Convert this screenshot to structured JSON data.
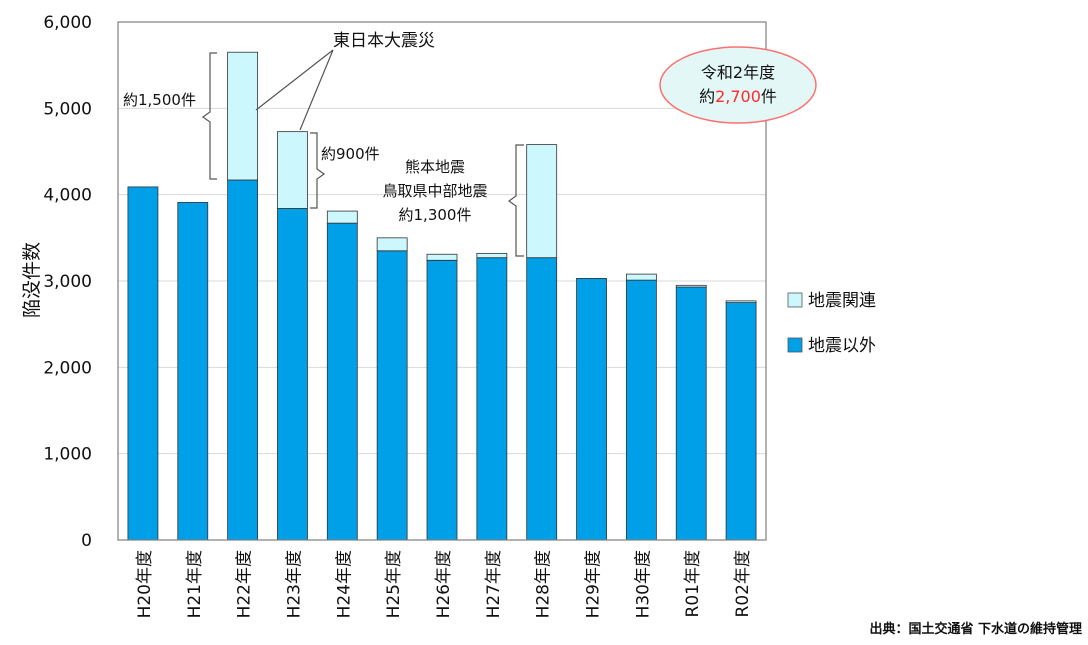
{
  "chart_data": {
    "type": "bar",
    "stacked": true,
    "categories": [
      "H20年度",
      "H21年度",
      "H22年度",
      "H23年度",
      "H24年度",
      "H25年度",
      "H26年度",
      "H27年度",
      "H28年度",
      "H29年度",
      "H30年度",
      "R01年度",
      "R02年度"
    ],
    "series": [
      {
        "name": "地震以外",
        "color": "#00a0e9",
        "values": [
          4090,
          3910,
          4170,
          3840,
          3670,
          3350,
          3240,
          3270,
          3270,
          3030,
          3010,
          2930,
          2750
        ]
      },
      {
        "name": "地震関連",
        "color": "#ccf7fc",
        "values": [
          0,
          0,
          1480,
          890,
          140,
          150,
          70,
          50,
          1310,
          0,
          70,
          20,
          20
        ]
      }
    ],
    "ylabel": "陥没件数",
    "ylim": [
      0,
      6000
    ],
    "yticks": [
      0,
      1000,
      2000,
      3000,
      4000,
      5000,
      6000
    ],
    "ytick_labels": [
      "0",
      "1,000",
      "2,000",
      "3,000",
      "4,000",
      "5,000",
      "6,000"
    ],
    "grid": true,
    "legend_position": "right",
    "annotations": {
      "quake_label": "東日本大震災",
      "h22_amount": "約1,500件",
      "h23_amount": "約900件",
      "h28_line1": "熊本地震",
      "h28_line2": "鳥取県中部地震",
      "h28_line3": "約1,300件",
      "badge_line1": "令和2年度",
      "badge_prefix": "約",
      "badge_number": "2,700",
      "badge_suffix": "件"
    }
  },
  "source": "出典：国土交通省 下水道の維持管理",
  "colors": {
    "bar_main": "#00a0e9",
    "bar_quake": "#ccf7fc",
    "axis": "#7f7f7f",
    "grid": "#d9d9d9",
    "badge_fill": "#e3f7f7",
    "badge_stroke": "#ff6f6f",
    "badge_highlight": "#ff2a2a"
  }
}
